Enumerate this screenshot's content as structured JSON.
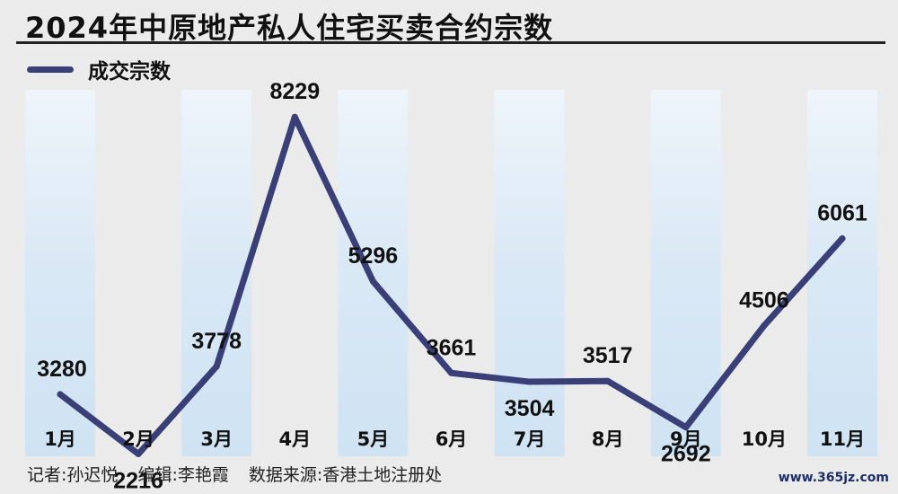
{
  "header": {
    "title": "2024年中原地产私人住宅买卖合约宗数"
  },
  "chart_data": {
    "type": "line",
    "title": "2024年中原地产私人住宅买卖合约宗数",
    "categories": [
      "1月",
      "2月",
      "3月",
      "4月",
      "5月",
      "6月",
      "7月",
      "8月",
      "9月",
      "10月",
      "11月"
    ],
    "series": [
      {
        "name": "成交宗数",
        "values": [
          3280,
          2216,
          3778,
          8229,
          5296,
          3661,
          3504,
          3517,
          2692,
          4506,
          6061
        ]
      }
    ],
    "legend": "top-left",
    "grid": false,
    "colors": {
      "line": "#3a3f78",
      "band": "#cfe3f3"
    }
  },
  "footer": {
    "credits": [
      "记者:孙迟悦",
      "编辑:李艳霞",
      "数据来源:香港土地注册处"
    ],
    "watermark": "www.365jz.com"
  }
}
